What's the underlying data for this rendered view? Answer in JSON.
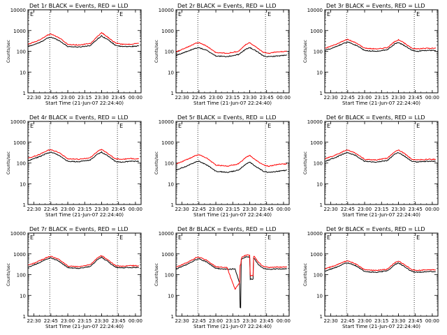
{
  "figure": {
    "ylabel": "Counts/sec",
    "xlabel": "Start Time (21-Jun-07 22:24:40)",
    "x_ticks": [
      "22:30",
      "22:45",
      "23:00",
      "23:15",
      "23:30",
      "23:45",
      "00:00"
    ],
    "y_ticks": [
      "1",
      "10",
      "100",
      "1000",
      "10000"
    ],
    "marker_label": "E",
    "colors": {
      "events": "#000000",
      "lld": "#ff0000",
      "axes": "#000000",
      "background": "#ffffff"
    }
  },
  "chart_data": [
    {
      "type": "line",
      "title": "Det 1r BLACK = Events, RED = LLD",
      "ylabel": "Counts/sec",
      "xlabel": "Start Time (21-Jun-07 22:24:40)",
      "y_scale": "log",
      "ylim": [
        1,
        10000
      ],
      "xlim": [
        "22:24:40",
        "00:05:00"
      ],
      "grid": false,
      "vlines": [
        "22:44",
        "23:44"
      ],
      "x": [
        "22:25",
        "22:35",
        "22:42",
        "22:45",
        "22:52",
        "23:00",
        "23:10",
        "23:20",
        "23:27",
        "23:30",
        "23:35",
        "23:42",
        "23:47",
        "23:55",
        "00:03"
      ],
      "series": [
        {
          "name": "Events",
          "values": [
            170,
            260,
            430,
            480,
            340,
            170,
            160,
            190,
            420,
            550,
            380,
            200,
            170,
            170,
            180
          ]
        },
        {
          "name": "LLD",
          "values": [
            220,
            350,
            600,
            680,
            460,
            220,
            200,
            240,
            560,
            800,
            500,
            260,
            220,
            220,
            240
          ]
        }
      ]
    },
    {
      "type": "line",
      "title": "Det 2r BLACK = Events, RED = LLD",
      "ylabel": "Counts/sec",
      "xlabel": "Start Time (21-Jun-07 22:24:40)",
      "y_scale": "log",
      "ylim": [
        1,
        10000
      ],
      "xlim": [
        "22:24:40",
        "00:05:00"
      ],
      "grid": false,
      "vlines": [
        "22:44",
        "23:44"
      ],
      "x": [
        "22:25",
        "22:35",
        "22:42",
        "22:45",
        "22:52",
        "23:00",
        "23:10",
        "23:20",
        "23:27",
        "23:30",
        "23:35",
        "23:42",
        "23:47",
        "23:55",
        "00:03"
      ],
      "series": [
        {
          "name": "Events",
          "values": [
            65,
            100,
            140,
            150,
            110,
            60,
            55,
            70,
            130,
            150,
            110,
            60,
            55,
            60,
            65
          ]
        },
        {
          "name": "LLD",
          "values": [
            95,
            160,
            240,
            260,
            180,
            85,
            80,
            100,
            220,
            260,
            170,
            90,
            80,
            95,
            100
          ]
        }
      ]
    },
    {
      "type": "line",
      "title": "Det 3r BLACK = Events, RED = LLD",
      "ylabel": "Counts/sec",
      "xlabel": "Start Time (21-Jun-07 22:24:40)",
      "y_scale": "log",
      "ylim": [
        1,
        10000
      ],
      "xlim": [
        "22:24:40",
        "00:05:00"
      ],
      "grid": false,
      "vlines": [
        "22:44",
        "23:44"
      ],
      "x": [
        "22:25",
        "22:35",
        "22:42",
        "22:45",
        "22:52",
        "23:00",
        "23:10",
        "23:20",
        "23:27",
        "23:30",
        "23:35",
        "23:42",
        "23:47",
        "23:55",
        "00:03"
      ],
      "series": [
        {
          "name": "Events",
          "values": [
            110,
            170,
            250,
            280,
            200,
            110,
            100,
            120,
            230,
            270,
            190,
            110,
            100,
            110,
            110
          ]
        },
        {
          "name": "LLD",
          "values": [
            140,
            220,
            330,
            370,
            260,
            140,
            130,
            150,
            300,
            360,
            250,
            140,
            130,
            140,
            140
          ]
        }
      ]
    },
    {
      "type": "line",
      "title": "Det 4r BLACK = Events, RED = LLD",
      "ylabel": "Counts/sec",
      "xlabel": "Start Time (21-Jun-07 22:24:40)",
      "y_scale": "log",
      "ylim": [
        1,
        10000
      ],
      "xlim": [
        "22:24:40",
        "00:05:00"
      ],
      "grid": false,
      "vlines": [
        "22:44",
        "23:44"
      ],
      "x": [
        "22:25",
        "22:35",
        "22:42",
        "22:45",
        "22:52",
        "23:00",
        "23:10",
        "23:20",
        "23:27",
        "23:30",
        "23:35",
        "23:42",
        "23:47",
        "23:55",
        "00:03"
      ],
      "series": [
        {
          "name": "Events",
          "values": [
            130,
            200,
            300,
            330,
            240,
            120,
            115,
            140,
            280,
            330,
            230,
            120,
            110,
            120,
            120
          ]
        },
        {
          "name": "LLD",
          "values": [
            170,
            260,
            400,
            440,
            320,
            160,
            150,
            180,
            380,
            450,
            300,
            160,
            150,
            160,
            160
          ]
        }
      ]
    },
    {
      "type": "line",
      "title": "Det 5r BLACK = Events, RED = LLD",
      "ylabel": "Counts/sec",
      "xlabel": "Start Time (21-Jun-07 22:24:40)",
      "y_scale": "log",
      "ylim": [
        1,
        10000
      ],
      "xlim": [
        "22:24:40",
        "00:05:00"
      ],
      "grid": false,
      "vlines": [
        "22:44",
        "23:44"
      ],
      "x": [
        "22:25",
        "22:35",
        "22:42",
        "22:45",
        "22:52",
        "23:00",
        "23:10",
        "23:20",
        "23:27",
        "23:30",
        "23:35",
        "23:42",
        "23:47",
        "23:55",
        "00:03"
      ],
      "series": [
        {
          "name": "Events",
          "values": [
            45,
            75,
            110,
            120,
            80,
            40,
            35,
            45,
            90,
            110,
            70,
            40,
            35,
            40,
            45
          ]
        },
        {
          "name": "LLD",
          "values": [
            90,
            150,
            230,
            250,
            170,
            80,
            70,
            90,
            190,
            230,
            140,
            80,
            70,
            85,
            90
          ]
        }
      ]
    },
    {
      "type": "line",
      "title": "Det 6r BLACK = Events, RED = LLD",
      "ylabel": "Counts/sec",
      "xlabel": "Start Time (21-Jun-07 22:24:40)",
      "y_scale": "log",
      "ylim": [
        1,
        10000
      ],
      "xlim": [
        "22:24:40",
        "00:05:00"
      ],
      "grid": false,
      "vlines": [
        "22:44",
        "23:44"
      ],
      "x": [
        "22:25",
        "22:35",
        "22:42",
        "22:45",
        "22:52",
        "23:00",
        "23:10",
        "23:20",
        "23:27",
        "23:30",
        "23:35",
        "23:42",
        "23:47",
        "23:55",
        "00:03"
      ],
      "series": [
        {
          "name": "Events",
          "values": [
            120,
            190,
            290,
            320,
            230,
            120,
            110,
            130,
            270,
            320,
            220,
            120,
            110,
            120,
            120
          ]
        },
        {
          "name": "LLD",
          "values": [
            160,
            250,
            380,
            420,
            300,
            150,
            140,
            170,
            360,
            430,
            290,
            150,
            140,
            150,
            150
          ]
        }
      ]
    },
    {
      "type": "line",
      "title": "Det 7r BLACK = Events, RED = LLD",
      "ylabel": "Counts/sec",
      "xlabel": "Start Time (21-Jun-07 22:24:40)",
      "y_scale": "log",
      "ylim": [
        1,
        10000
      ],
      "xlim": [
        "22:24:40",
        "00:05:00"
      ],
      "grid": false,
      "vlines": [
        "22:44",
        "23:44"
      ],
      "x": [
        "22:25",
        "22:35",
        "22:42",
        "22:45",
        "22:52",
        "23:00",
        "23:10",
        "23:20",
        "23:27",
        "23:30",
        "23:35",
        "23:42",
        "23:47",
        "23:55",
        "00:03"
      ],
      "series": [
        {
          "name": "Events",
          "values": [
            230,
            380,
            580,
            650,
            450,
            220,
            200,
            250,
            560,
            680,
            450,
            230,
            210,
            220,
            220
          ]
        },
        {
          "name": "LLD",
          "values": [
            280,
            460,
            700,
            780,
            540,
            260,
            240,
            300,
            680,
            820,
            540,
            280,
            250,
            270,
            270
          ]
        }
      ]
    },
    {
      "type": "line",
      "title": "Det 8r BLACK = Events, RED = LLD",
      "ylabel": "Counts/sec",
      "xlabel": "Start Time (21-Jun-07 22:24:40)",
      "y_scale": "log",
      "ylim": [
        1,
        10000
      ],
      "xlim": [
        "22:24:40",
        "00:05:00"
      ],
      "grid": false,
      "vlines": [
        "22:44",
        "23:44"
      ],
      "x": [
        "22:25",
        "22:35",
        "22:42",
        "22:45",
        "22:52",
        "23:00",
        "23:10",
        "23:17",
        "23:21",
        "23:22",
        "23:23",
        "23:26",
        "23:28",
        "23:30",
        "23:31",
        "23:32",
        "23:33",
        "23:34",
        "23:38",
        "23:42",
        "23:47",
        "23:55",
        "00:03"
      ],
      "series": [
        {
          "name": "Events",
          "values": [
            190,
            320,
            520,
            580,
            400,
            200,
            180,
            190,
            40,
            2.5,
            550,
            700,
            720,
            700,
            60,
            60,
            60,
            600,
            300,
            200,
            180,
            190,
            190
          ]
        },
        {
          "name": "LLD",
          "values": [
            230,
            390,
            640,
            700,
            490,
            240,
            220,
            20,
            40,
            300,
            700,
            850,
            880,
            850,
            90,
            90,
            90,
            750,
            380,
            250,
            220,
            230,
            230
          ]
        }
      ]
    },
    {
      "type": "line",
      "title": "Det 9r BLACK = Events, RED = LLD",
      "ylabel": "Counts/sec",
      "xlabel": "Start Time (21-Jun-07 22:24:40)",
      "y_scale": "log",
      "ylim": [
        1,
        10000
      ],
      "xlim": [
        "22:24:40",
        "00:05:00"
      ],
      "grid": false,
      "vlines": [
        "22:44",
        "23:44"
      ],
      "x": [
        "22:25",
        "22:35",
        "22:42",
        "22:45",
        "22:52",
        "23:00",
        "23:10",
        "23:20",
        "23:27",
        "23:30",
        "23:35",
        "23:42",
        "23:47",
        "23:55",
        "00:03"
      ],
      "series": [
        {
          "name": "Events",
          "values": [
            150,
            230,
            340,
            370,
            270,
            140,
            130,
            150,
            310,
            370,
            250,
            140,
            130,
            140,
            140
          ]
        },
        {
          "name": "LLD",
          "values": [
            190,
            290,
            420,
            460,
            330,
            170,
            160,
            180,
            380,
            460,
            310,
            170,
            160,
            170,
            170
          ]
        }
      ]
    }
  ]
}
